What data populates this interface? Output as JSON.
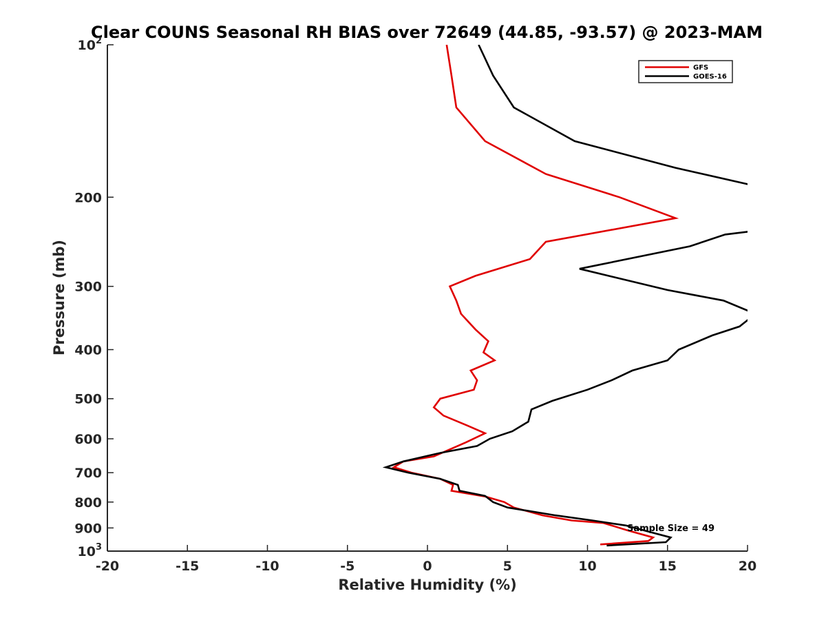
{
  "chart_data": {
    "type": "line",
    "title": "Clear COUNS Seasonal RH BIAS over 72649 (44.85, -93.57) @ 2023-MAM",
    "xlabel": "Relative Humidity (%)",
    "ylabel": "Pressure (mb)",
    "xlim": [
      -20,
      20
    ],
    "ylim": [
      100,
      1000
    ],
    "yscale": "log",
    "y_reversed": true,
    "x_ticks": [
      -20,
      -15,
      -10,
      -5,
      0,
      5,
      10,
      15,
      20
    ],
    "x_tick_labels": [
      "-20",
      "-15",
      "-10",
      "-5",
      "0",
      "5",
      "10",
      "15",
      "20"
    ],
    "y_ticks": [
      100,
      200,
      300,
      400,
      500,
      600,
      700,
      800,
      900,
      1000
    ],
    "y_tick_labels": [
      {
        "base": "10",
        "exp": "2"
      },
      {
        "base": "200"
      },
      {
        "base": "300"
      },
      {
        "base": "400"
      },
      {
        "base": "500"
      },
      {
        "base": "600"
      },
      {
        "base": "700"
      },
      {
        "base": "800"
      },
      {
        "base": "900"
      },
      {
        "base": "10",
        "exp": "3"
      }
    ],
    "grid": false,
    "legend_position": "top-right",
    "annotation": "Sample Size = 49",
    "series": [
      {
        "name": "GFS",
        "color": "#e00000",
        "points": [
          [
            1.2,
            100
          ],
          [
            1.5,
            115
          ],
          [
            1.8,
            133
          ],
          [
            3.6,
            155
          ],
          [
            7.4,
            180
          ],
          [
            12.0,
            200
          ],
          [
            15.5,
            220
          ],
          [
            7.4,
            245
          ],
          [
            6.4,
            265
          ],
          [
            3.0,
            286
          ],
          [
            1.4,
            300
          ],
          [
            1.8,
            320
          ],
          [
            2.1,
            340
          ],
          [
            3.0,
            365
          ],
          [
            3.8,
            385
          ],
          [
            3.5,
            405
          ],
          [
            4.2,
            420
          ],
          [
            2.7,
            440
          ],
          [
            3.1,
            460
          ],
          [
            2.9,
            480
          ],
          [
            0.8,
            500
          ],
          [
            0.4,
            520
          ],
          [
            1.0,
            540
          ],
          [
            2.5,
            565
          ],
          [
            3.6,
            585
          ],
          [
            2.4,
            610
          ],
          [
            0.4,
            650
          ],
          [
            -1.5,
            665
          ],
          [
            -2.1,
            683
          ],
          [
            -1.0,
            700
          ],
          [
            0.8,
            720
          ],
          [
            1.6,
            740
          ],
          [
            1.5,
            760
          ],
          [
            3.6,
            780
          ],
          [
            4.8,
            800
          ],
          [
            5.4,
            820
          ],
          [
            7.2,
            850
          ],
          [
            9.0,
            870
          ],
          [
            11.0,
            880
          ],
          [
            12.5,
            910
          ],
          [
            14.1,
            940
          ],
          [
            13.8,
            955
          ],
          [
            10.8,
            970
          ]
        ]
      },
      {
        "name": "GOES-16",
        "color": "#000000",
        "points": [
          [
            3.2,
            100
          ],
          [
            4.1,
            115
          ],
          [
            5.4,
            133
          ],
          [
            9.2,
            155
          ],
          [
            15.5,
            175
          ],
          [
            20.5,
            190
          ],
          [
            20.5,
            233
          ],
          [
            18.6,
            237
          ],
          [
            16.4,
            250
          ],
          [
            9.5,
            277
          ],
          [
            15.0,
            305
          ],
          [
            18.5,
            320
          ],
          [
            20.5,
            340
          ],
          [
            19.5,
            360
          ],
          [
            17.8,
            375
          ],
          [
            15.7,
            400
          ],
          [
            15.0,
            420
          ],
          [
            12.8,
            440
          ],
          [
            11.5,
            460
          ],
          [
            10.0,
            480
          ],
          [
            7.8,
            505
          ],
          [
            6.5,
            525
          ],
          [
            6.3,
            555
          ],
          [
            5.3,
            580
          ],
          [
            3.9,
            600
          ],
          [
            3.1,
            620
          ],
          [
            0.8,
            640
          ],
          [
            -1.5,
            665
          ],
          [
            -2.6,
            683
          ],
          [
            -1.2,
            700
          ],
          [
            0.8,
            720
          ],
          [
            1.9,
            740
          ],
          [
            2.0,
            760
          ],
          [
            3.6,
            778
          ],
          [
            4.1,
            800
          ],
          [
            5.0,
            820
          ],
          [
            8.0,
            850
          ],
          [
            10.3,
            870
          ],
          [
            12.4,
            890
          ],
          [
            13.8,
            915
          ],
          [
            15.2,
            940
          ],
          [
            14.9,
            960
          ],
          [
            11.2,
            975
          ]
        ]
      }
    ]
  }
}
